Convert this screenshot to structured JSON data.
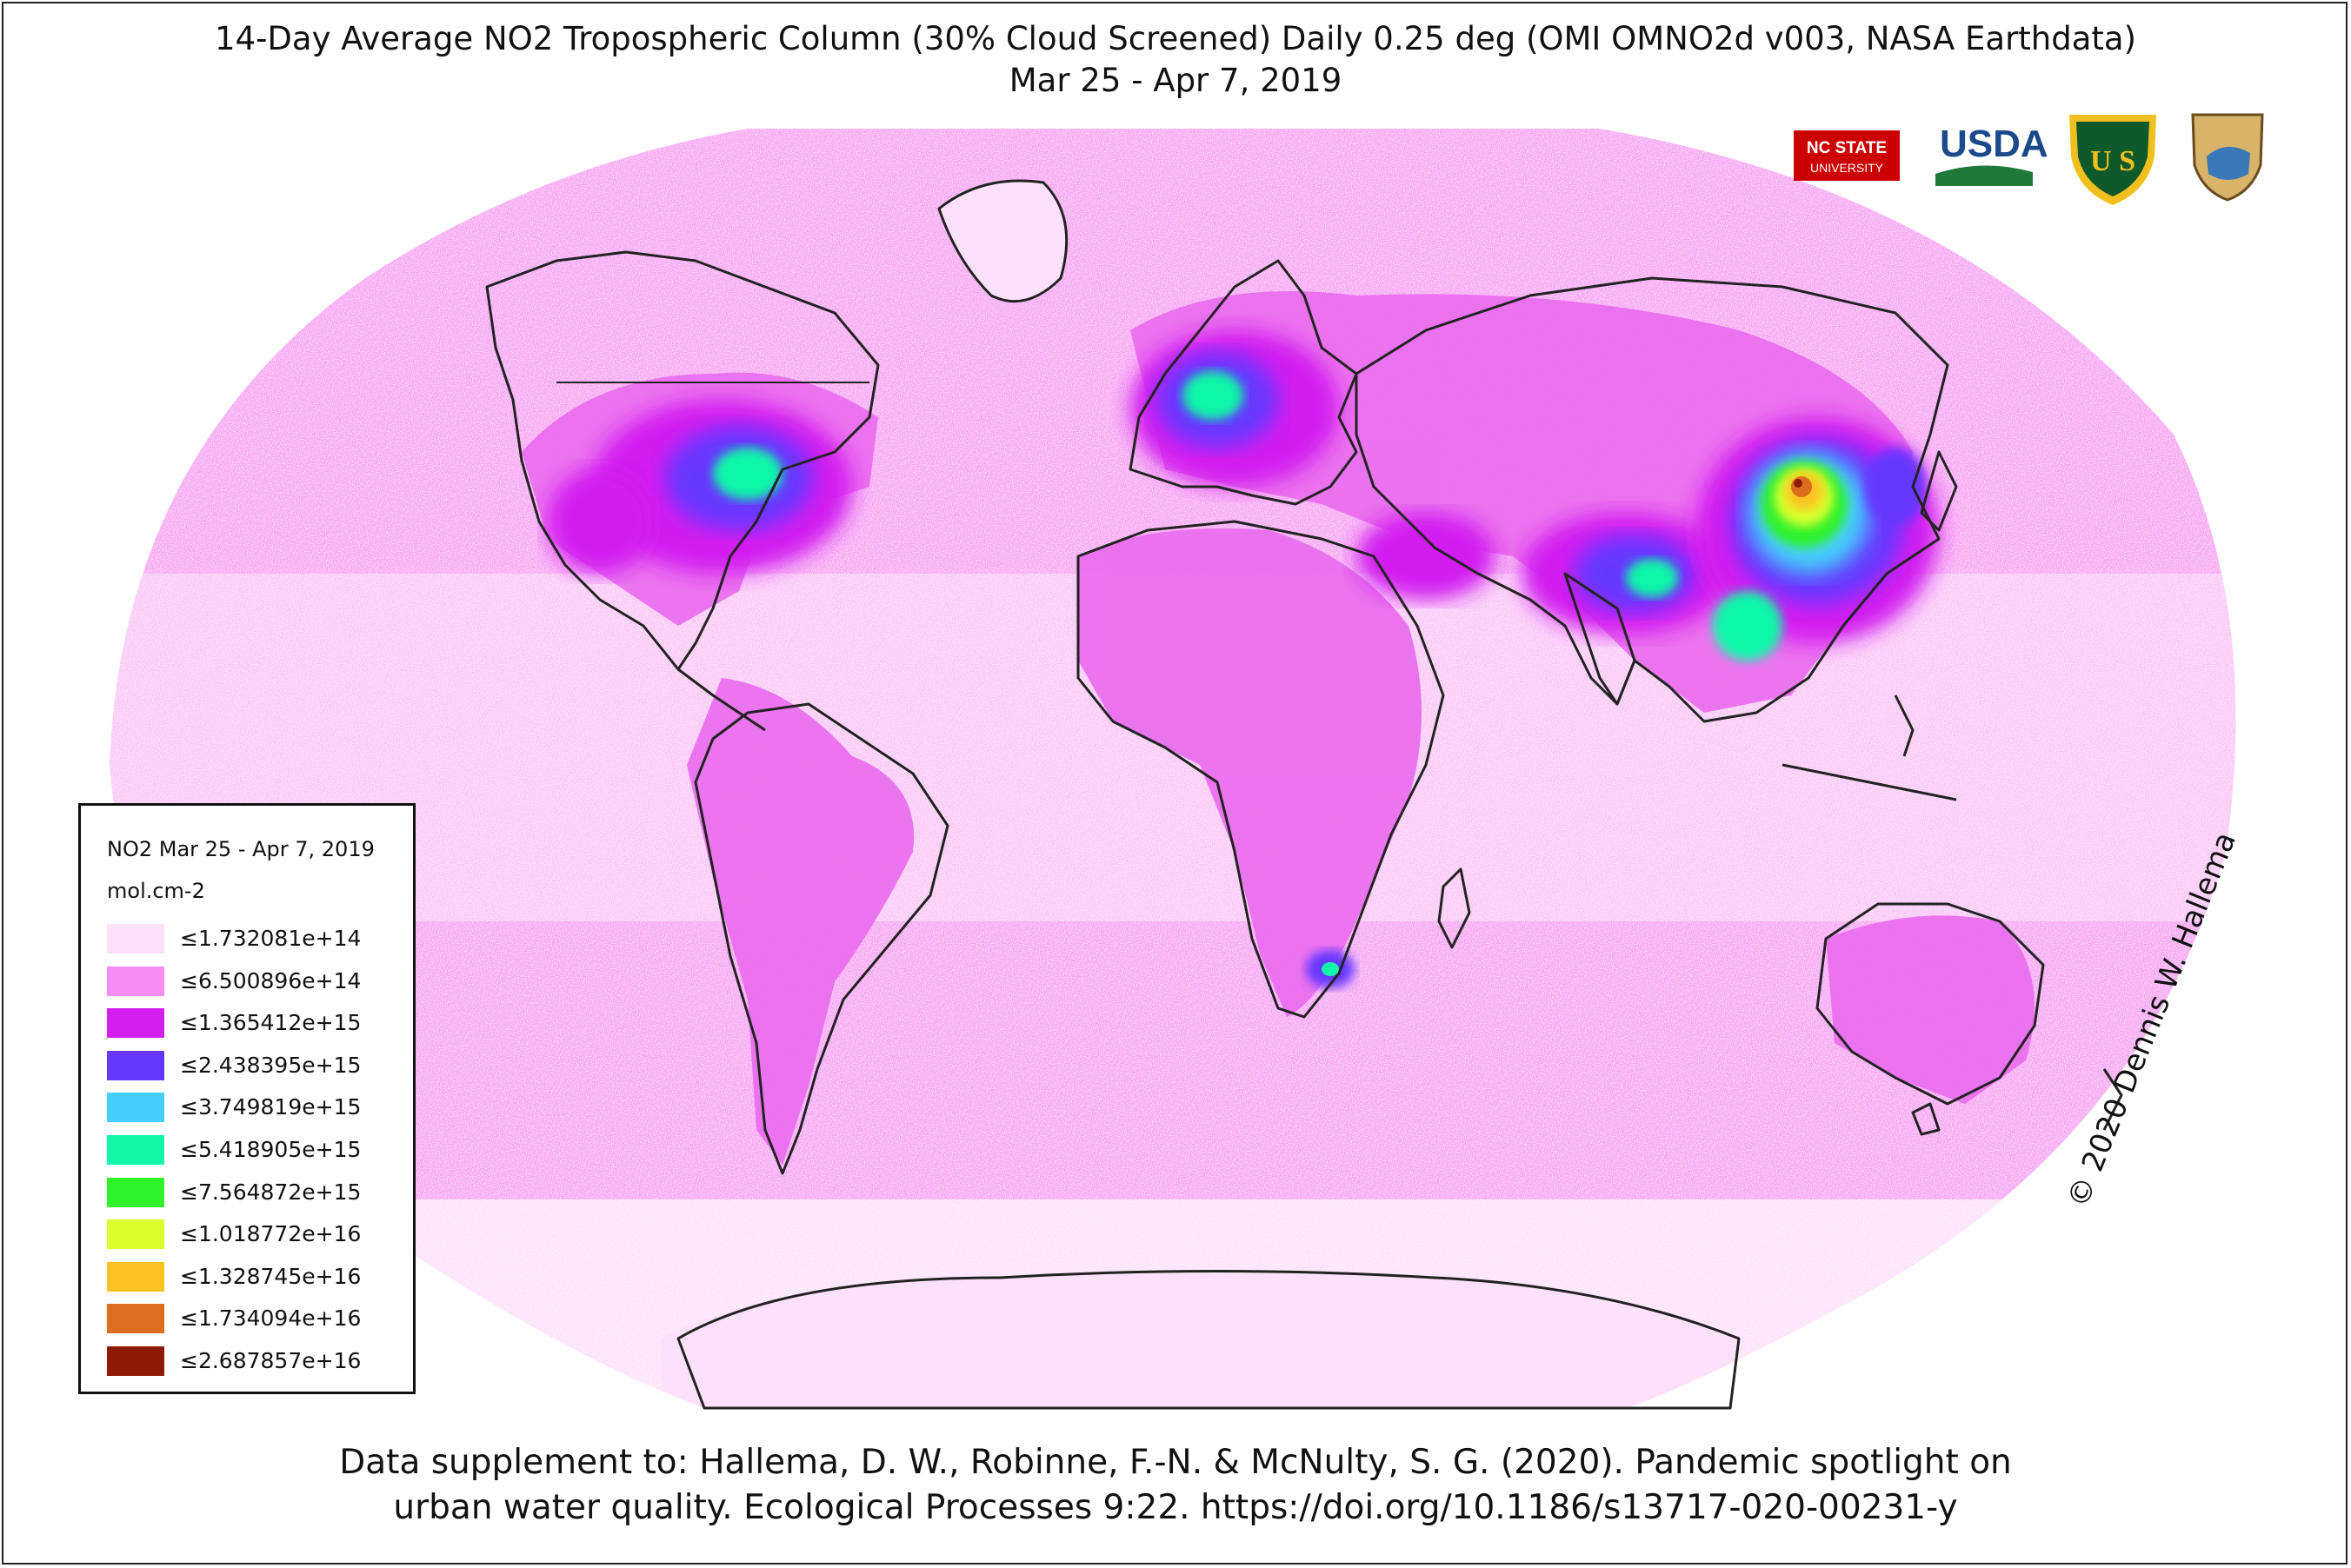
{
  "title_line1": "14-Day Average NO2 Tropospheric Column (30% Cloud Screened) Daily 0.25 deg (OMI OMNO2d v003, NASA Earthdata)",
  "title_line2": "Mar 25 - Apr 7, 2019",
  "footer_line1": "Data supplement to: Hallema, D. W., Robinne, F.-N. & McNulty, S. G. (2020). Pandemic spotlight on",
  "footer_line2": "urban water quality. Ecological Processes 9:22. https://doi.org/10.1186/s13717-020-00231-y",
  "copyright": "© 2020 Dennis W. Hallema",
  "legend": {
    "title": "NO2 Mar 25 - Apr 7, 2019",
    "unit": "mol.cm-2",
    "items": [
      {
        "label": "≤1.732081e+14",
        "color": "#fde1fb"
      },
      {
        "label": "≤6.500896e+14",
        "color": "#f58cf3"
      },
      {
        "label": "≤1.365412e+15",
        "color": "#d21ff0"
      },
      {
        "label": "≤2.438395e+15",
        "color": "#6637ff"
      },
      {
        "label": "≤3.749819e+15",
        "color": "#45cffc"
      },
      {
        "label": "≤5.418905e+15",
        "color": "#10f7a8"
      },
      {
        "label": "≤7.564872e+15",
        "color": "#2ef22a"
      },
      {
        "label": "≤1.018772e+16",
        "color": "#dcff2e"
      },
      {
        "label": "≤1.328745e+16",
        "color": "#fcc223"
      },
      {
        "label": "≤1.734094e+16",
        "color": "#dd6e20"
      },
      {
        "label": "≤2.687857e+16",
        "color": "#8c1a07"
      }
    ]
  },
  "logos": {
    "ncstate_line1": "NC STATE",
    "ncstate_line2": "UNIVERSITY",
    "usda": "USDA",
    "forest_service": "U S",
    "ncstate_color": "#cc0000",
    "usda_color": "#1a4a8a",
    "forest_color": "#0f5a2a",
    "forest_gold": "#f2c01e"
  }
}
